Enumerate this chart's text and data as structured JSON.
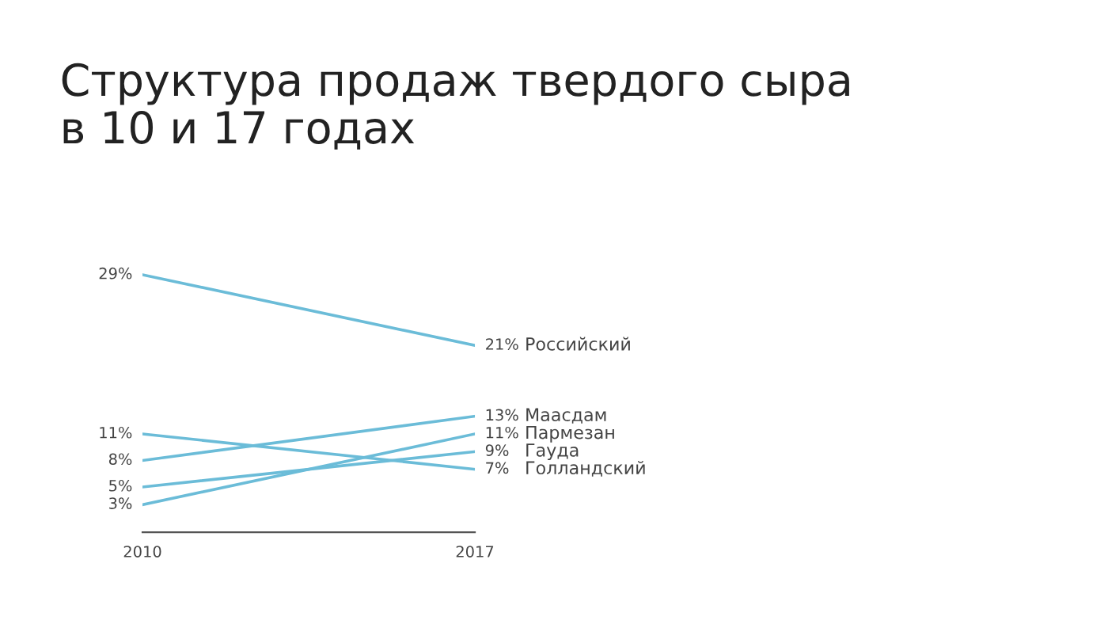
{
  "chart_data": {
    "type": "line",
    "title": "Структура продаж твердого сыра\nв 10 и 17 годах",
    "categories": [
      "2010",
      "2017"
    ],
    "grid": false,
    "legend": false,
    "marker": "none",
    "line_style": "solid",
    "tick_labels": "x",
    "series": [
      {
        "name": "Российский",
        "color": "#6bbcd8",
        "values": [
          29,
          21
        ],
        "value_labels": [
          "29%",
          "21%"
        ]
      },
      {
        "name": "Маасдам",
        "color": "#6bbcd8",
        "values": [
          8,
          13
        ],
        "value_labels": [
          "8%",
          "13%"
        ]
      },
      {
        "name": "Пармезан",
        "color": "#6bbcd8",
        "values": [
          3,
          11
        ],
        "value_labels": [
          "3%",
          "11%"
        ]
      },
      {
        "name": "Гауда",
        "color": "#6bbcd8",
        "values": [
          5,
          9
        ],
        "value_labels": [
          "5%",
          "9%"
        ]
      },
      {
        "name": "Голландский",
        "color": "#6bbcd8",
        "values": [
          11,
          7
        ],
        "value_labels": [
          "11%",
          "7%"
        ]
      }
    ]
  }
}
